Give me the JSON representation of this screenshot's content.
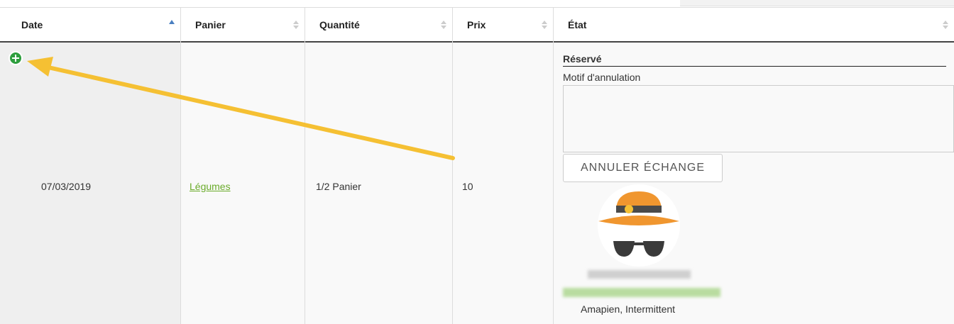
{
  "table": {
    "columns": [
      "Date",
      "Panier",
      "Quantité",
      "Prix",
      "État"
    ],
    "rows": [
      {
        "date": "07/03/2019",
        "panier": "Légumes",
        "quantite": "1/2 Panier",
        "prix": 10,
        "etat": {
          "status": "Réservé",
          "field_label": "Motif d'annulation",
          "button": "ANNULER ÉCHANGE",
          "roles": "Amapien, Intermittent"
        }
      }
    ]
  }
}
